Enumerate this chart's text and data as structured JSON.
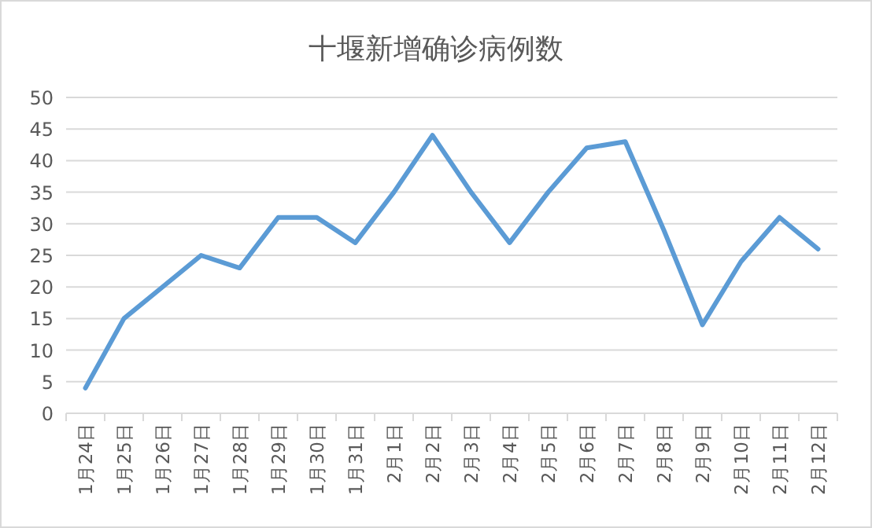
{
  "chart_data": {
    "type": "line",
    "title": "十堰新增确诊病例数",
    "categories": [
      "1月24日",
      "1月25日",
      "1月26日",
      "1月27日",
      "1月28日",
      "1月29日",
      "1月30日",
      "1月31日",
      "2月1日",
      "2月2日",
      "2月3日",
      "2月4日",
      "2月5日",
      "2月6日",
      "2月7日",
      "2月8日",
      "2月9日",
      "2月10日",
      "2月11日",
      "2月12日"
    ],
    "values": [
      4,
      15,
      20,
      25,
      23,
      31,
      31,
      27,
      35,
      44,
      35,
      27,
      35,
      42,
      43,
      29,
      14,
      24,
      31,
      26
    ],
    "color": "#5b9bd5",
    "ylim": [
      0,
      50
    ],
    "yticks": [
      0,
      5,
      10,
      15,
      20,
      25,
      30,
      35,
      40,
      45,
      50
    ],
    "grid": "y",
    "marker": "none",
    "line_style": "solid"
  }
}
